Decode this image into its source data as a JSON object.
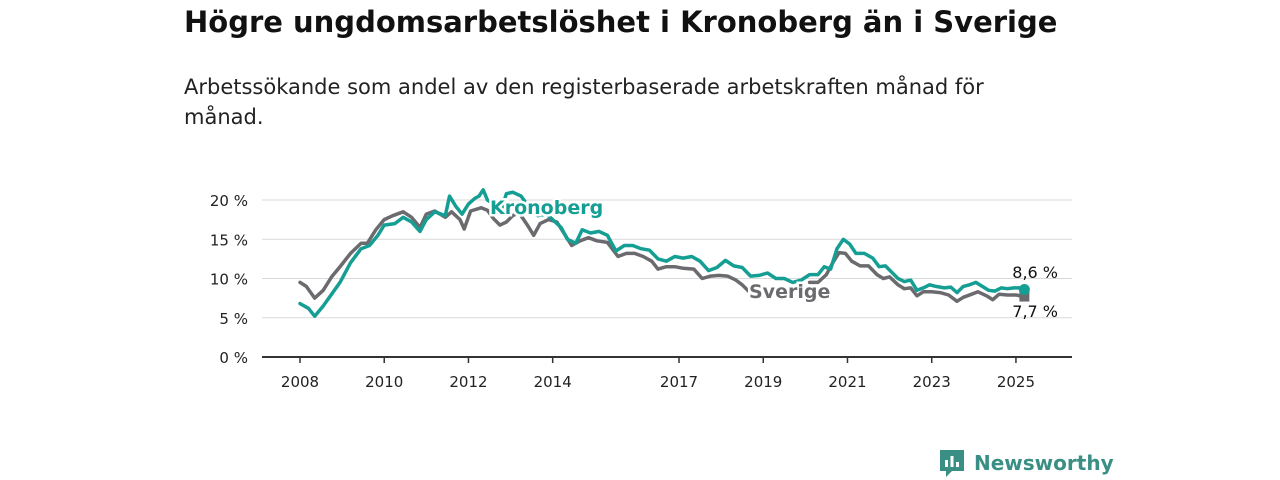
{
  "title": "Högre ungdomsarbetslöshet i Kronoberg än i Sverige",
  "subtitle": "Arbetssökande som andel av den registerbaserade arbetskraften månad för månad.",
  "brand": {
    "name": "Newsworthy",
    "icon": "newsworthy-bar-chart-icon"
  },
  "colors": {
    "kronoberg": "#159e93",
    "sverige": "#6b6b6f",
    "brand": "#3a8f84",
    "grid": "#d9d9d9",
    "axis": "#333333"
  },
  "chart_data": {
    "type": "line",
    "xlim": [
      2008,
      2025.5
    ],
    "ylim": [
      0,
      20
    ],
    "y_ticks": [
      0,
      5,
      10,
      15,
      20
    ],
    "y_tick_labels": [
      "0 %",
      "5 %",
      "10 %",
      "15 %",
      "20 %"
    ],
    "x_ticks": [
      2008,
      2010,
      2012,
      2014,
      2017,
      2019,
      2021,
      2023,
      2025
    ],
    "x_tick_labels": [
      "2008",
      "2010",
      "2012",
      "2014",
      "2017",
      "2019",
      "2021",
      "2023",
      "2025"
    ],
    "grid": "horizontal",
    "series": [
      {
        "name": "Kronoberg",
        "color": "#159e93",
        "last_value_label": "8,6 %",
        "points": [
          [
            2008.0,
            6.8
          ],
          [
            2008.2,
            6.2
          ],
          [
            2008.35,
            5.2
          ],
          [
            2008.55,
            6.5
          ],
          [
            2008.75,
            8.0
          ],
          [
            2008.95,
            9.5
          ],
          [
            2009.2,
            12.0
          ],
          [
            2009.45,
            13.8
          ],
          [
            2009.65,
            14.2
          ],
          [
            2009.85,
            15.5
          ],
          [
            2010.0,
            16.8
          ],
          [
            2010.25,
            17.0
          ],
          [
            2010.45,
            17.8
          ],
          [
            2010.65,
            17.2
          ],
          [
            2010.85,
            16.0
          ],
          [
            2011.0,
            17.5
          ],
          [
            2011.2,
            18.5
          ],
          [
            2011.45,
            18.0
          ],
          [
            2011.55,
            20.5
          ],
          [
            2011.7,
            19.2
          ],
          [
            2011.85,
            18.2
          ],
          [
            2012.0,
            19.5
          ],
          [
            2012.15,
            20.2
          ],
          [
            2012.25,
            20.5
          ],
          [
            2012.35,
            21.3
          ],
          [
            2012.45,
            20.0
          ],
          [
            2012.6,
            19.5
          ],
          [
            2012.75,
            18.2
          ],
          [
            2012.9,
            20.8
          ],
          [
            2013.05,
            21.0
          ],
          [
            2013.25,
            20.5
          ],
          [
            2013.45,
            19.0
          ],
          [
            2013.65,
            18.0
          ],
          [
            2013.85,
            18.2
          ],
          [
            2014.0,
            17.5
          ],
          [
            2014.2,
            16.5
          ],
          [
            2014.35,
            15.0
          ],
          [
            2014.55,
            14.5
          ],
          [
            2014.7,
            16.2
          ],
          [
            2014.9,
            15.8
          ],
          [
            2015.1,
            16.0
          ],
          [
            2015.3,
            15.5
          ],
          [
            2015.5,
            13.5
          ],
          [
            2015.7,
            14.2
          ],
          [
            2015.9,
            14.2
          ],
          [
            2016.1,
            13.8
          ],
          [
            2016.3,
            13.6
          ],
          [
            2016.5,
            12.5
          ],
          [
            2016.7,
            12.2
          ],
          [
            2016.9,
            12.8
          ],
          [
            2017.1,
            12.6
          ],
          [
            2017.3,
            12.8
          ],
          [
            2017.5,
            12.2
          ],
          [
            2017.7,
            11.0
          ],
          [
            2017.9,
            11.4
          ],
          [
            2018.1,
            12.3
          ],
          [
            2018.3,
            11.6
          ],
          [
            2018.5,
            11.4
          ],
          [
            2018.7,
            10.3
          ],
          [
            2018.9,
            10.4
          ],
          [
            2019.1,
            10.7
          ],
          [
            2019.3,
            10.0
          ],
          [
            2019.5,
            10.0
          ],
          [
            2019.7,
            9.5
          ],
          [
            2019.9,
            9.8
          ],
          [
            2020.1,
            10.5
          ],
          [
            2020.3,
            10.5
          ],
          [
            2020.45,
            11.5
          ],
          [
            2020.6,
            11.2
          ],
          [
            2020.75,
            13.8
          ],
          [
            2020.9,
            15.0
          ],
          [
            2021.05,
            14.4
          ],
          [
            2021.2,
            13.2
          ],
          [
            2021.4,
            13.2
          ],
          [
            2021.6,
            12.6
          ],
          [
            2021.75,
            11.5
          ],
          [
            2021.9,
            11.6
          ],
          [
            2022.05,
            10.8
          ],
          [
            2022.2,
            10.0
          ],
          [
            2022.35,
            9.6
          ],
          [
            2022.5,
            9.8
          ],
          [
            2022.65,
            8.5
          ],
          [
            2022.8,
            8.8
          ],
          [
            2022.95,
            9.2
          ],
          [
            2023.1,
            9.0
          ],
          [
            2023.3,
            8.8
          ],
          [
            2023.45,
            8.9
          ],
          [
            2023.6,
            8.2
          ],
          [
            2023.75,
            9.0
          ],
          [
            2023.9,
            9.2
          ],
          [
            2024.05,
            9.5
          ],
          [
            2024.2,
            9.0
          ],
          [
            2024.35,
            8.5
          ],
          [
            2024.5,
            8.4
          ],
          [
            2024.65,
            8.8
          ],
          [
            2024.8,
            8.7
          ],
          [
            2024.95,
            8.8
          ],
          [
            2025.1,
            8.8
          ],
          [
            2025.2,
            8.6
          ]
        ]
      },
      {
        "name": "Sverige",
        "color": "#6b6b6f",
        "last_value_label": "7,7 %",
        "points": [
          [
            2008.0,
            9.5
          ],
          [
            2008.15,
            9.0
          ],
          [
            2008.35,
            7.5
          ],
          [
            2008.55,
            8.5
          ],
          [
            2008.75,
            10.2
          ],
          [
            2008.95,
            11.5
          ],
          [
            2009.2,
            13.2
          ],
          [
            2009.45,
            14.5
          ],
          [
            2009.6,
            14.5
          ],
          [
            2009.8,
            16.2
          ],
          [
            2010.0,
            17.5
          ],
          [
            2010.2,
            18.0
          ],
          [
            2010.45,
            18.5
          ],
          [
            2010.65,
            17.8
          ],
          [
            2010.85,
            16.5
          ],
          [
            2011.0,
            18.2
          ],
          [
            2011.2,
            18.6
          ],
          [
            2011.45,
            17.8
          ],
          [
            2011.6,
            18.5
          ],
          [
            2011.8,
            17.5
          ],
          [
            2011.9,
            16.3
          ],
          [
            2012.05,
            18.6
          ],
          [
            2012.3,
            19.0
          ],
          [
            2012.45,
            18.7
          ],
          [
            2012.6,
            17.6
          ],
          [
            2012.75,
            16.8
          ],
          [
            2012.9,
            17.2
          ],
          [
            2013.05,
            18.0
          ],
          [
            2013.2,
            18.4
          ],
          [
            2013.4,
            16.8
          ],
          [
            2013.55,
            15.5
          ],
          [
            2013.7,
            17.0
          ],
          [
            2013.9,
            17.5
          ],
          [
            2014.1,
            17.2
          ],
          [
            2014.3,
            15.5
          ],
          [
            2014.45,
            14.2
          ],
          [
            2014.65,
            14.8
          ],
          [
            2014.85,
            15.2
          ],
          [
            2015.05,
            14.8
          ],
          [
            2015.3,
            14.6
          ],
          [
            2015.55,
            12.8
          ],
          [
            2015.75,
            13.2
          ],
          [
            2015.95,
            13.2
          ],
          [
            2016.15,
            12.8
          ],
          [
            2016.35,
            12.2
          ],
          [
            2016.5,
            11.2
          ],
          [
            2016.7,
            11.5
          ],
          [
            2016.9,
            11.5
          ],
          [
            2017.1,
            11.3
          ],
          [
            2017.35,
            11.2
          ],
          [
            2017.55,
            10.0
          ],
          [
            2017.75,
            10.3
          ],
          [
            2017.95,
            10.4
          ],
          [
            2018.15,
            10.3
          ],
          [
            2018.35,
            9.8
          ],
          [
            2018.5,
            9.2
          ],
          [
            2018.65,
            8.4
          ]
        ],
        "points_late": [
          [
            2020.1,
            9.5
          ],
          [
            2020.3,
            9.5
          ],
          [
            2020.5,
            10.5
          ],
          [
            2020.65,
            12.0
          ],
          [
            2020.8,
            13.3
          ],
          [
            2020.95,
            13.2
          ],
          [
            2021.1,
            12.2
          ],
          [
            2021.3,
            11.6
          ],
          [
            2021.5,
            11.6
          ],
          [
            2021.7,
            10.5
          ],
          [
            2021.85,
            10.0
          ],
          [
            2022.0,
            10.2
          ],
          [
            2022.2,
            9.2
          ],
          [
            2022.35,
            8.7
          ],
          [
            2022.5,
            8.8
          ],
          [
            2022.65,
            7.8
          ],
          [
            2022.8,
            8.3
          ],
          [
            2023.0,
            8.3
          ],
          [
            2023.2,
            8.2
          ],
          [
            2023.4,
            7.9
          ],
          [
            2023.6,
            7.1
          ],
          [
            2023.75,
            7.6
          ],
          [
            2023.95,
            8.0
          ],
          [
            2024.1,
            8.3
          ],
          [
            2024.3,
            7.8
          ],
          [
            2024.45,
            7.3
          ],
          [
            2024.6,
            8.0
          ],
          [
            2024.8,
            7.9
          ],
          [
            2025.0,
            7.9
          ],
          [
            2025.2,
            7.7
          ]
        ]
      }
    ]
  }
}
